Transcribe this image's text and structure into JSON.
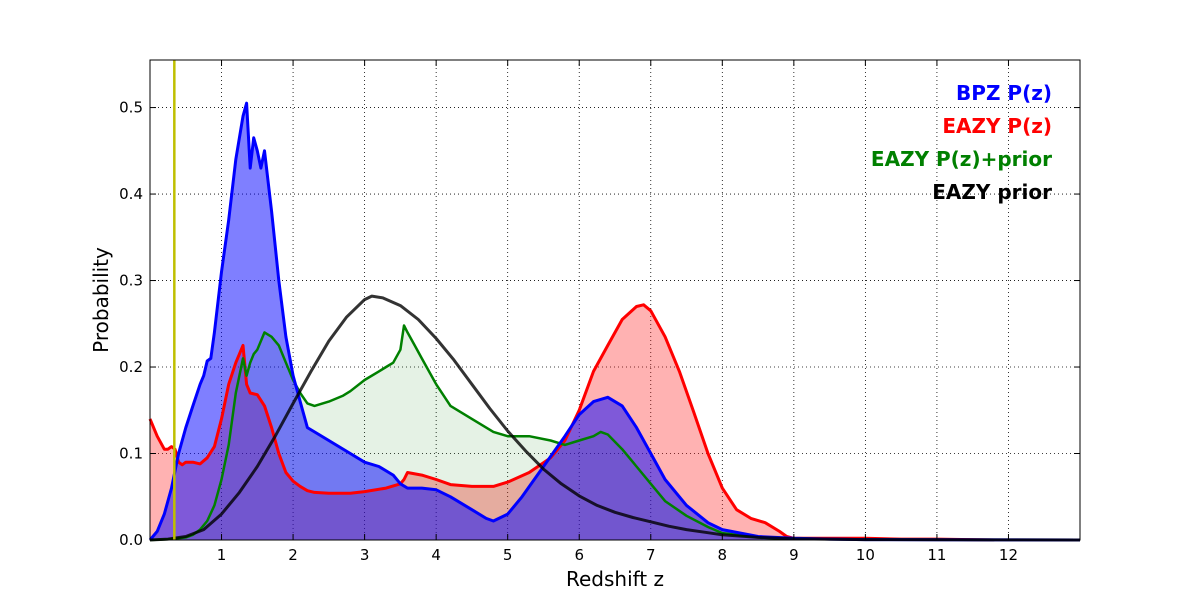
{
  "chart_data": {
    "type": "area",
    "title": "",
    "xlabel": "Redshift z",
    "ylabel": "Probability",
    "xlim": [
      0,
      13
    ],
    "ylim": [
      0,
      0.555
    ],
    "x_ticks": [
      1,
      2,
      3,
      4,
      5,
      6,
      7,
      8,
      9,
      10,
      11,
      12
    ],
    "y_ticks": [
      0.0,
      0.1,
      0.2,
      0.3,
      0.4,
      0.5
    ],
    "y_tick_labels": [
      "0.0",
      "0.1",
      "0.2",
      "0.3",
      "0.4",
      "0.5"
    ],
    "grid": true,
    "legend_position": "top-right",
    "vertical_line": {
      "x": 0.34,
      "color": "#bfbf00"
    },
    "series": [
      {
        "name": "EAZY P(z)",
        "color": "#ff0000",
        "fill": "#ff0000",
        "fill_opacity": 0.3,
        "line_width": 3,
        "x": [
          0,
          0.1,
          0.2,
          0.25,
          0.3,
          0.35,
          0.4,
          0.45,
          0.5,
          0.6,
          0.7,
          0.8,
          0.9,
          1.0,
          1.1,
          1.2,
          1.3,
          1.35,
          1.4,
          1.5,
          1.6,
          1.7,
          1.8,
          1.9,
          2.0,
          2.1,
          2.2,
          2.3,
          2.5,
          2.8,
          3.0,
          3.3,
          3.5,
          3.55,
          3.6,
          3.8,
          4.0,
          4.2,
          4.5,
          4.8,
          5.0,
          5.3,
          5.6,
          5.8,
          6.0,
          6.2,
          6.4,
          6.6,
          6.8,
          6.9,
          7.0,
          7.2,
          7.4,
          7.6,
          7.8,
          8.0,
          8.2,
          8.4,
          8.6,
          8.8,
          8.9,
          9.0,
          9.2,
          9.5,
          10.0,
          10.5,
          11.0,
          11.8
        ],
        "y": [
          0.14,
          0.12,
          0.105,
          0.105,
          0.108,
          0.105,
          0.09,
          0.087,
          0.09,
          0.09,
          0.088,
          0.095,
          0.108,
          0.14,
          0.18,
          0.205,
          0.225,
          0.18,
          0.17,
          0.168,
          0.155,
          0.13,
          0.1,
          0.078,
          0.068,
          0.062,
          0.057,
          0.055,
          0.054,
          0.054,
          0.056,
          0.06,
          0.065,
          0.07,
          0.078,
          0.075,
          0.07,
          0.064,
          0.062,
          0.062,
          0.067,
          0.078,
          0.095,
          0.115,
          0.15,
          0.195,
          0.225,
          0.255,
          0.27,
          0.272,
          0.265,
          0.235,
          0.195,
          0.148,
          0.1,
          0.06,
          0.035,
          0.025,
          0.02,
          0.01,
          0.004,
          0.002,
          0.002,
          0.002,
          0.002,
          0.001,
          0.001,
          0.0
        ]
      },
      {
        "name": "EAZY P(z)+prior",
        "color": "#008000",
        "fill": "#008000",
        "fill_opacity": 0.1,
        "line_width": 2.5,
        "x": [
          0,
          0.3,
          0.5,
          0.6,
          0.7,
          0.8,
          0.9,
          1.0,
          1.1,
          1.2,
          1.3,
          1.35,
          1.4,
          1.45,
          1.5,
          1.6,
          1.7,
          1.8,
          1.9,
          2.0,
          2.1,
          2.2,
          2.3,
          2.5,
          2.7,
          2.8,
          3.0,
          3.2,
          3.3,
          3.4,
          3.5,
          3.55,
          3.6,
          3.7,
          3.8,
          4.0,
          4.2,
          4.5,
          4.8,
          5.0,
          5.3,
          5.6,
          5.8,
          6.0,
          6.2,
          6.3,
          6.4,
          6.6,
          6.8,
          7.0,
          7.2,
          7.5,
          7.8,
          8.0,
          8.5,
          9.0,
          10.0,
          11.0,
          11.8
        ],
        "y": [
          0.0,
          0.001,
          0.003,
          0.006,
          0.012,
          0.022,
          0.04,
          0.07,
          0.11,
          0.17,
          0.21,
          0.19,
          0.205,
          0.215,
          0.22,
          0.24,
          0.235,
          0.225,
          0.205,
          0.185,
          0.17,
          0.158,
          0.155,
          0.16,
          0.167,
          0.172,
          0.185,
          0.195,
          0.2,
          0.205,
          0.22,
          0.248,
          0.24,
          0.225,
          0.21,
          0.18,
          0.155,
          0.14,
          0.125,
          0.12,
          0.12,
          0.115,
          0.11,
          0.115,
          0.12,
          0.125,
          0.122,
          0.105,
          0.085,
          0.065,
          0.045,
          0.028,
          0.015,
          0.008,
          0.003,
          0.001,
          0.0008,
          0.0005,
          0.0
        ]
      },
      {
        "name": "BPZ P(z)",
        "color": "#0000ff",
        "fill": "#0000ff",
        "fill_opacity": 0.5,
        "line_width": 3,
        "x": [
          0,
          0.1,
          0.2,
          0.3,
          0.4,
          0.5,
          0.6,
          0.7,
          0.75,
          0.8,
          0.85,
          0.9,
          1.0,
          1.1,
          1.2,
          1.3,
          1.35,
          1.4,
          1.45,
          1.5,
          1.55,
          1.6,
          1.7,
          1.8,
          1.9,
          2.0,
          2.1,
          2.2,
          2.3,
          2.5,
          2.8,
          3.0,
          3.2,
          3.4,
          3.5,
          3.6,
          3.8,
          4.0,
          4.2,
          4.5,
          4.7,
          4.8,
          5.0,
          5.2,
          5.5,
          5.8,
          6.0,
          6.2,
          6.4,
          6.6,
          6.8,
          7.0,
          7.2,
          7.5,
          7.8,
          8.0,
          8.5,
          9.0,
          9.5,
          10.0,
          11.0,
          12.0,
          13.0
        ],
        "y": [
          0.0,
          0.01,
          0.03,
          0.06,
          0.1,
          0.13,
          0.155,
          0.18,
          0.19,
          0.207,
          0.21,
          0.24,
          0.31,
          0.37,
          0.44,
          0.49,
          0.505,
          0.43,
          0.465,
          0.45,
          0.43,
          0.45,
          0.38,
          0.3,
          0.235,
          0.19,
          0.16,
          0.13,
          0.125,
          0.115,
          0.1,
          0.09,
          0.085,
          0.075,
          0.065,
          0.06,
          0.06,
          0.058,
          0.05,
          0.035,
          0.025,
          0.022,
          0.03,
          0.05,
          0.085,
          0.12,
          0.145,
          0.16,
          0.165,
          0.155,
          0.13,
          0.1,
          0.07,
          0.04,
          0.02,
          0.012,
          0.004,
          0.002,
          0.001,
          0.0005,
          0.0002,
          0.0001,
          0.0
        ]
      },
      {
        "name": "EAZY prior",
        "color": "#000000",
        "fill": "none",
        "fill_opacity": 0,
        "line_width": 3,
        "opacity": 0.8,
        "x": [
          0,
          0.25,
          0.5,
          0.75,
          1.0,
          1.25,
          1.5,
          1.75,
          2.0,
          2.25,
          2.5,
          2.75,
          3.0,
          3.1,
          3.25,
          3.5,
          3.75,
          4.0,
          4.25,
          4.5,
          4.75,
          5.0,
          5.25,
          5.5,
          5.75,
          6.0,
          6.25,
          6.5,
          6.75,
          7.0,
          7.25,
          7.5,
          7.75,
          8.0,
          8.5,
          9.0,
          10.0,
          11.0,
          12.0,
          13.0
        ],
        "y": [
          0.0,
          0.001,
          0.004,
          0.012,
          0.03,
          0.055,
          0.085,
          0.12,
          0.158,
          0.195,
          0.23,
          0.258,
          0.278,
          0.282,
          0.28,
          0.271,
          0.255,
          0.233,
          0.208,
          0.18,
          0.152,
          0.126,
          0.103,
          0.082,
          0.065,
          0.051,
          0.04,
          0.032,
          0.026,
          0.021,
          0.016,
          0.012,
          0.009,
          0.006,
          0.003,
          0.0015,
          0.0005,
          0.0002,
          0.0001,
          0.0
        ]
      }
    ],
    "legend": [
      {
        "label": "BPZ P(z)",
        "color": "#0000ff"
      },
      {
        "label": "EAZY P(z)",
        "color": "#ff0000"
      },
      {
        "label": "EAZY P(z)+prior",
        "color": "#008000"
      },
      {
        "label": "EAZY prior",
        "color": "#000000"
      }
    ]
  }
}
